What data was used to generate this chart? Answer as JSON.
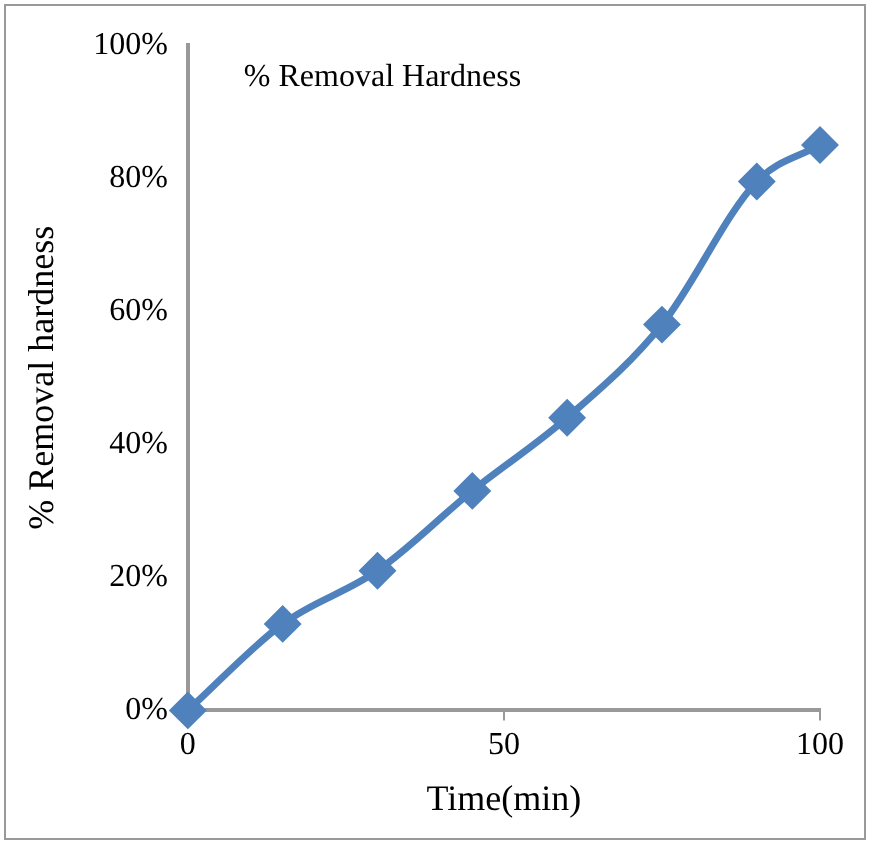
{
  "chart_data": {
    "type": "line",
    "title": "% Removal Hardness",
    "xlabel": "Time(min)",
    "ylabel": "% Removal hardness",
    "x": [
      0,
      15,
      30,
      45,
      60,
      75,
      90,
      100
    ],
    "series": [
      {
        "color": "#4f81bd",
        "values": [
          0,
          13,
          21,
          33,
          44,
          58,
          79.5,
          85
        ]
      }
    ],
    "xlim": [
      0,
      100
    ],
    "xticks": [
      0,
      50,
      100
    ],
    "ylim": [
      0,
      100
    ],
    "yticks": [
      {
        "value": 0,
        "label": "0%"
      },
      {
        "value": 20,
        "label": "20%"
      },
      {
        "value": 40,
        "label": "40%"
      },
      {
        "value": 60,
        "label": "60%"
      },
      {
        "value": 80,
        "label": "80%"
      },
      {
        "value": 100,
        "label": "100%"
      }
    ],
    "grid": false,
    "legend": false,
    "marker": "diamond",
    "line_style": "solid"
  }
}
